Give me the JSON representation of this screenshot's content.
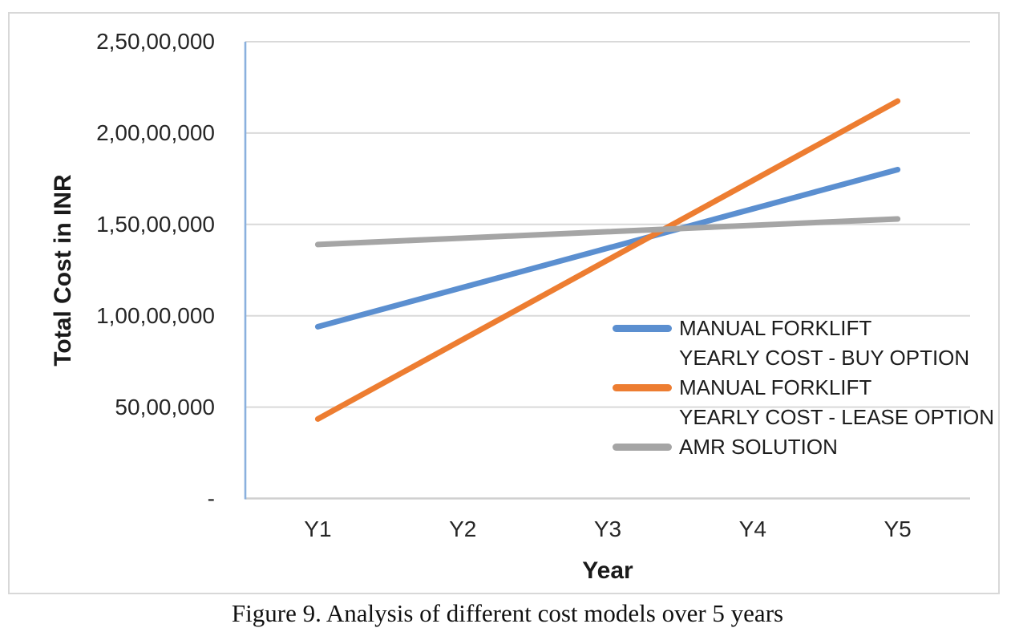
{
  "figure": {
    "caption": "Figure 9. Analysis of different cost models over 5 years"
  },
  "chart_data": {
    "type": "line",
    "title": "",
    "xlabel": "Year",
    "ylabel": "Total Cost in INR",
    "categories": [
      "Y1",
      "Y2",
      "Y3",
      "Y4",
      "Y5"
    ],
    "series": [
      {
        "name": "MANUAL FORKLIFT\nYEARLY COST - BUY OPTION",
        "color": "#5B8FD0",
        "values": [
          9400000,
          11550000,
          13700000,
          15850000,
          18000000
        ]
      },
      {
        "name": "MANUAL FORKLIFT\nYEARLY COST - LEASE OPTION",
        "color": "#ED7D31",
        "values": [
          4350000,
          8700000,
          13050000,
          17400000,
          21750000
        ]
      },
      {
        "name": "AMR SOLUTION",
        "color": "#A5A5A5",
        "values": [
          13900000,
          14250000,
          14600000,
          14950000,
          15300000
        ]
      }
    ],
    "ylim": [
      0,
      25000000
    ],
    "y_ticks": [
      25000000,
      20000000,
      15000000,
      10000000,
      5000000,
      0
    ],
    "y_tick_labels": [
      "2,50,00,000",
      "2,00,00,000",
      "1,50,00,000",
      "1,00,00,000",
      "50,00,000",
      "-"
    ],
    "grid": "horizontal",
    "legend_position": "inside-right",
    "colors": {
      "gridline": "#D9D9D9",
      "x_axis_line": "#CFCFCF",
      "y_axis_line": "#8AB0DE",
      "text": "#262626"
    }
  }
}
